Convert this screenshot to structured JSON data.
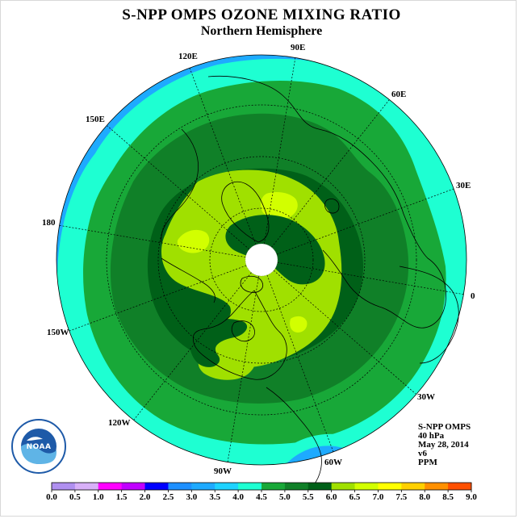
{
  "title": "S-NPP OMPS OZONE MIXING RATIO",
  "subtitle": "Northern Hemisphere",
  "longitude_labels": [
    "90E",
    "60E",
    "30E",
    "0",
    "30W",
    "60W",
    "90W",
    "120W",
    "150W",
    "180",
    "150E",
    "120E"
  ],
  "info": {
    "instrument": "S-NPP OMPS",
    "pressure": "40 hPa",
    "date": "May 28, 2014",
    "version": "v6",
    "units": "PPM"
  },
  "colorbar": {
    "ticks": [
      "0.0",
      "0.5",
      "1.0",
      "1.5",
      "2.0",
      "2.5",
      "3.0",
      "3.5",
      "4.0",
      "4.5",
      "5.0",
      "5.5",
      "6.0",
      "6.5",
      "7.0",
      "7.5",
      "8.0",
      "8.5",
      "9.0"
    ],
    "colors": [
      "#b090f0",
      "#d8b0f8",
      "#ff00ff",
      "#c000ff",
      "#0000ff",
      "#1e90ff",
      "#1eaaff",
      "#1ed2ff",
      "#1effd2",
      "#18a838",
      "#108028",
      "#006018",
      "#a0e000",
      "#d2ff00",
      "#ffff00",
      "#ffd000",
      "#ff9000",
      "#ff5000",
      "#ff0000",
      "#8b5a2b"
    ]
  },
  "logo_text": "NOAA",
  "map_colors": {
    "level_3_0": "#1eaaff",
    "level_3_5": "#1effd2",
    "level_4_0": "#18a838",
    "level_4_5": "#108028",
    "level_5_0": "#006018",
    "level_5_5": "#a0e000",
    "level_6_0": "#d2ff00"
  }
}
